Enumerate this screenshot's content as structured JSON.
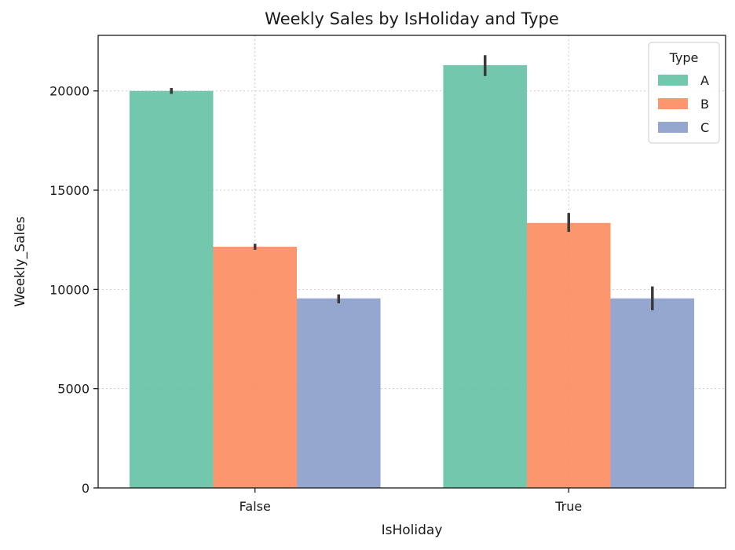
{
  "chart_data": {
    "type": "bar",
    "title": "Weekly Sales by IsHoliday and Type",
    "xlabel": "IsHoliday",
    "ylabel": "Weekly_Sales",
    "categories": [
      "False",
      "True"
    ],
    "ylim": [
      0,
      22800
    ],
    "yticks": [
      0,
      5000,
      10000,
      15000,
      20000
    ],
    "grid": true,
    "legend": {
      "title": "Type",
      "placement": "top-right"
    },
    "series": [
      {
        "name": "A",
        "color": "#66c2a5",
        "values": [
          20000,
          21300
        ],
        "err_low": [
          19850,
          20750
        ],
        "err_high": [
          20150,
          21800
        ]
      },
      {
        "name": "B",
        "color": "#fc8d62",
        "values": [
          12150,
          13350
        ],
        "err_low": [
          12000,
          12900
        ],
        "err_high": [
          12300,
          13850
        ]
      },
      {
        "name": "C",
        "color": "#8da0cb",
        "values": [
          9550,
          9550
        ],
        "err_low": [
          9300,
          8950
        ],
        "err_high": [
          9750,
          10150
        ]
      }
    ]
  }
}
